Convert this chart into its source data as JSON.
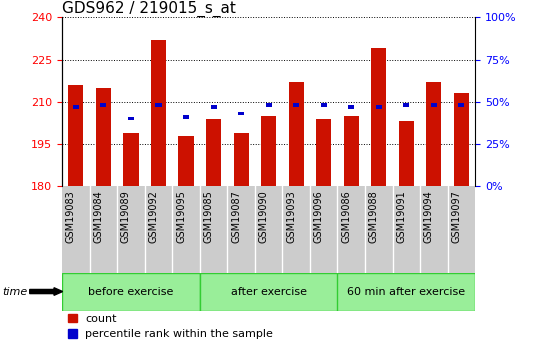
{
  "title": "GDS962 / 219015_s_at",
  "samples": [
    "GSM19083",
    "GSM19084",
    "GSM19089",
    "GSM19092",
    "GSM19095",
    "GSM19085",
    "GSM19087",
    "GSM19090",
    "GSM19093",
    "GSM19096",
    "GSM19086",
    "GSM19088",
    "GSM19091",
    "GSM19094",
    "GSM19097"
  ],
  "counts": [
    216,
    215,
    199,
    232,
    198,
    204,
    199,
    205,
    217,
    204,
    205,
    229,
    203,
    217,
    213
  ],
  "percentile_ranks": [
    47,
    48,
    40,
    48,
    41,
    47,
    43,
    48,
    48,
    48,
    47,
    47,
    48,
    48,
    48
  ],
  "bar_bottom": 180,
  "ymin": 180,
  "ymax": 240,
  "yticks_left": [
    180,
    195,
    210,
    225,
    240
  ],
  "yticks_right": [
    0,
    25,
    50,
    75,
    100
  ],
  "bar_color": "#cc1100",
  "blue_color": "#0000cc",
  "groups": [
    {
      "label": "before exercise",
      "start": 0,
      "end": 5
    },
    {
      "label": "after exercise",
      "start": 5,
      "end": 10
    },
    {
      "label": "60 min after exercise",
      "start": 10,
      "end": 15
    }
  ],
  "group_color": "#99ee99",
  "group_border_color": "#33cc33",
  "xticklabel_bg": "#cccccc",
  "bar_width": 0.55,
  "plot_bg": "#ffffff",
  "fig_bg": "#ffffff",
  "grid_linestyle": "dotted",
  "grid_color": "#000000",
  "title_fontsize": 11,
  "tick_fontsize": 7,
  "group_fontsize": 8,
  "legend_fontsize": 8
}
